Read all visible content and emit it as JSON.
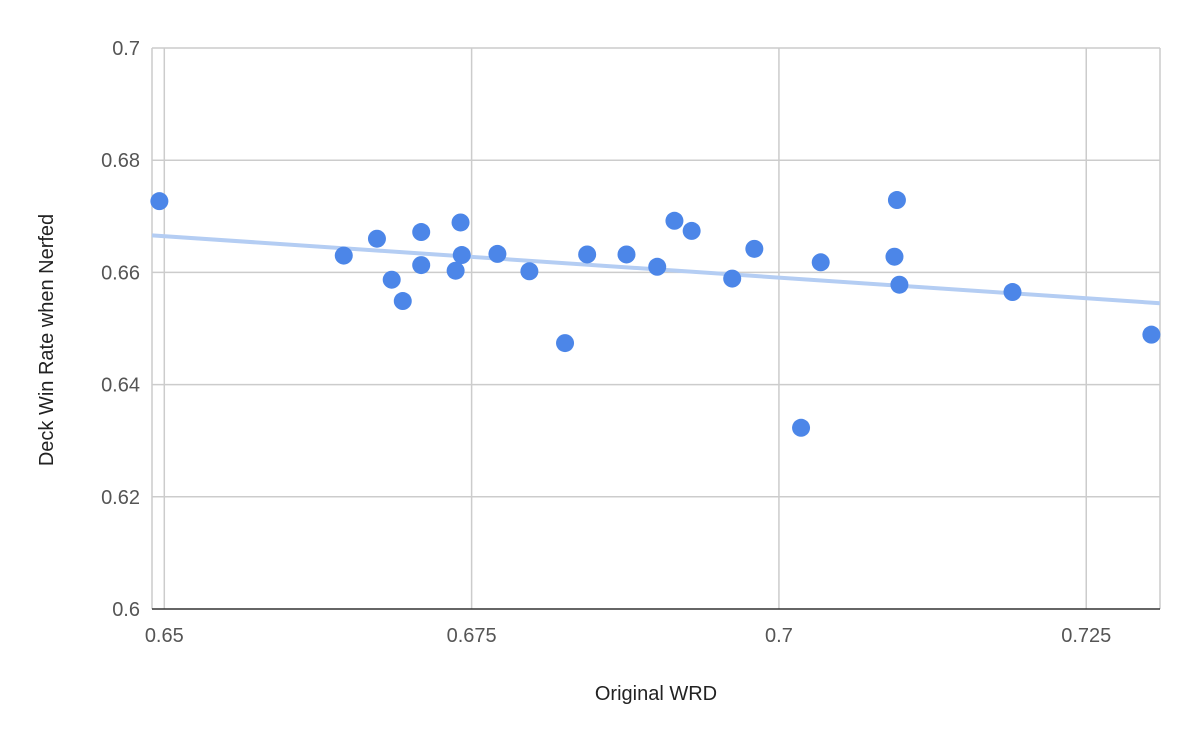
{
  "chart_data": {
    "type": "scatter",
    "title": "",
    "xlabel": "Original WRD",
    "ylabel": "Deck Win Rate when Nerfed",
    "xlim": [
      0.649,
      0.731
    ],
    "ylim": [
      0.6,
      0.7
    ],
    "x_ticks": [
      {
        "value": 0.65,
        "label": "0.65"
      },
      {
        "value": 0.675,
        "label": "0.675"
      },
      {
        "value": 0.7,
        "label": "0.7"
      },
      {
        "value": 0.725,
        "label": "0.725"
      }
    ],
    "y_ticks": [
      {
        "value": 0.6,
        "label": "0.6"
      },
      {
        "value": 0.62,
        "label": "0.62"
      },
      {
        "value": 0.64,
        "label": "0.64"
      },
      {
        "value": 0.66,
        "label": "0.66"
      },
      {
        "value": 0.68,
        "label": "0.68"
      },
      {
        "value": 0.7,
        "label": "0.7"
      }
    ],
    "grid": true,
    "legend": "none",
    "point_color": "#4c86e8",
    "trendline": {
      "type": "linear",
      "color": "#b4cdf3",
      "points": [
        [
          0.649,
          0.6666
        ],
        [
          0.731,
          0.6545
        ]
      ]
    },
    "points": [
      {
        "x": 0.6496,
        "y": 0.6727
      },
      {
        "x": 0.6646,
        "y": 0.663
      },
      {
        "x": 0.6673,
        "y": 0.666
      },
      {
        "x": 0.6685,
        "y": 0.6587
      },
      {
        "x": 0.6694,
        "y": 0.6549
      },
      {
        "x": 0.6709,
        "y": 0.6672
      },
      {
        "x": 0.6709,
        "y": 0.6613
      },
      {
        "x": 0.6737,
        "y": 0.6603
      },
      {
        "x": 0.6741,
        "y": 0.6689
      },
      {
        "x": 0.6742,
        "y": 0.6631
      },
      {
        "x": 0.6771,
        "y": 0.6633
      },
      {
        "x": 0.6797,
        "y": 0.6602
      },
      {
        "x": 0.6826,
        "y": 0.6474
      },
      {
        "x": 0.6844,
        "y": 0.6632
      },
      {
        "x": 0.6876,
        "y": 0.6632
      },
      {
        "x": 0.6901,
        "y": 0.661
      },
      {
        "x": 0.6915,
        "y": 0.6692
      },
      {
        "x": 0.6929,
        "y": 0.6674
      },
      {
        "x": 0.6962,
        "y": 0.6589
      },
      {
        "x": 0.698,
        "y": 0.6642
      },
      {
        "x": 0.7018,
        "y": 0.6323
      },
      {
        "x": 0.7034,
        "y": 0.6618
      },
      {
        "x": 0.7094,
        "y": 0.6628
      },
      {
        "x": 0.7096,
        "y": 0.6729
      },
      {
        "x": 0.7098,
        "y": 0.6578
      },
      {
        "x": 0.719,
        "y": 0.6565
      },
      {
        "x": 0.7303,
        "y": 0.6489
      }
    ]
  }
}
